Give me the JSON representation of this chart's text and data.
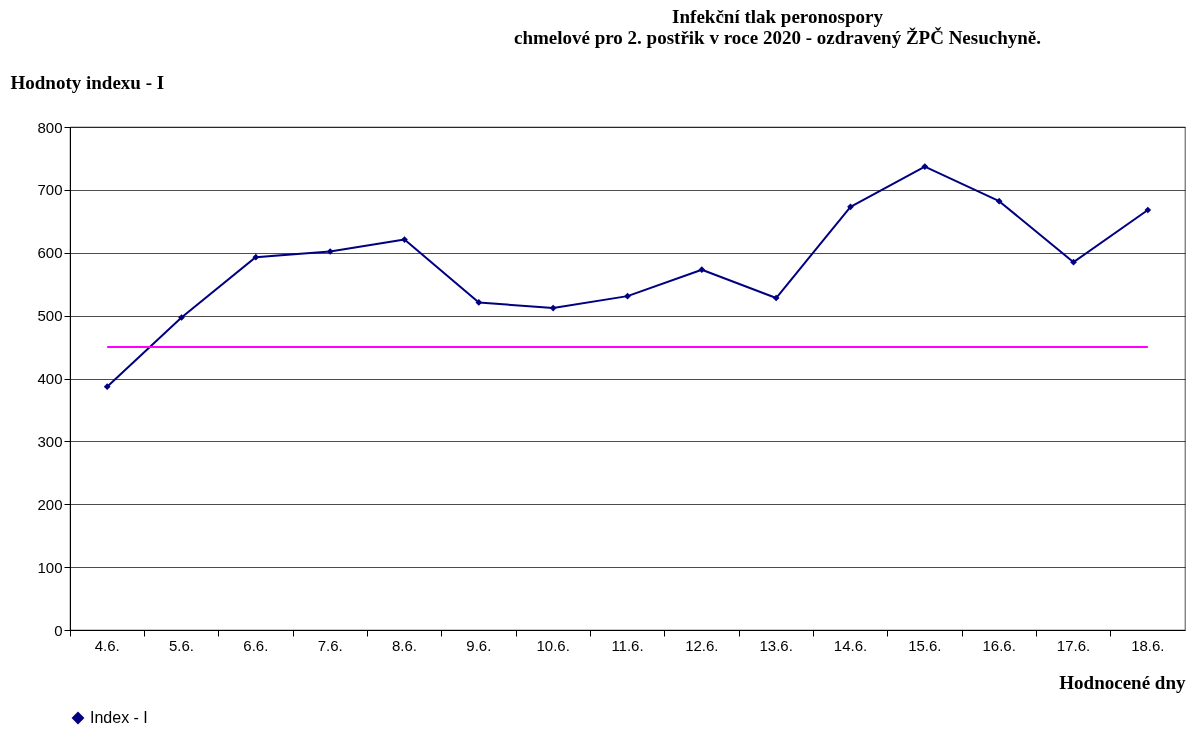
{
  "chart_data": {
    "type": "line",
    "title": [
      "Infekční tlak peronospory",
      "chmelové pro 2. postřik v roce 2020 - ozdravený ŽPČ  Nesuchyně."
    ],
    "ylabel": "Hodnoty indexu - I",
    "xlabel": "Hodnocené dny",
    "categories": [
      "4.6.",
      "5.6.",
      "6.6.",
      "7.6.",
      "8.6.",
      "9.6.",
      "10.6.",
      "11.6.",
      "12.6.",
      "13.6.",
      "14.6.",
      "15.6.",
      "16.6.",
      "17.6.",
      "18.6."
    ],
    "series": [
      {
        "name": "Index - I",
        "color": "#000080",
        "values": [
          387,
          497,
          593,
          602,
          621,
          521,
          512,
          531,
          573,
          528,
          673,
          737,
          682,
          585,
          668
        ]
      }
    ],
    "ref_lines": [
      {
        "axis": "y",
        "value": 450,
        "color": "#ff00ff"
      }
    ],
    "ylim": [
      0,
      800
    ],
    "yticks": [
      0,
      100,
      200,
      300,
      400,
      500,
      600,
      700,
      800
    ],
    "grid": "y",
    "legend": "bottom",
    "marker": "diamond",
    "line_style": "solid"
  }
}
